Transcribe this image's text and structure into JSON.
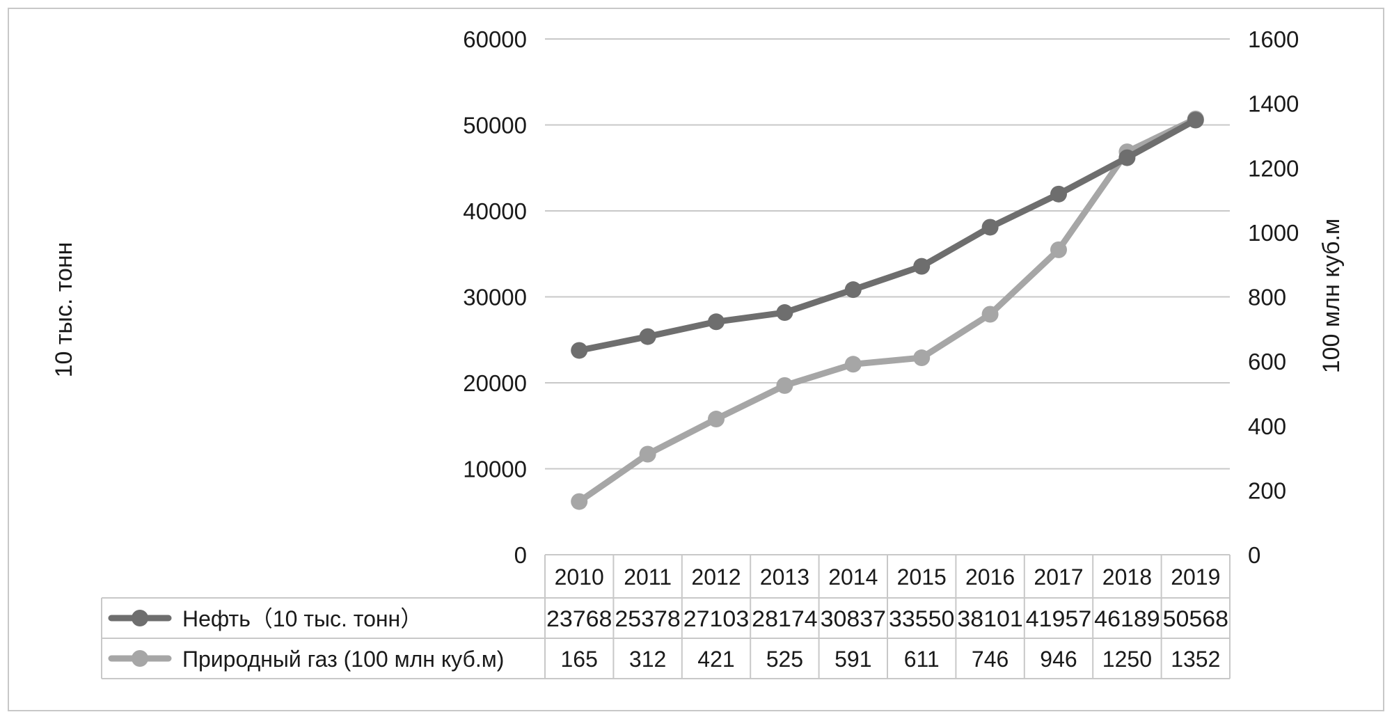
{
  "chart_data": {
    "type": "line",
    "categories": [
      "2010",
      "2011",
      "2012",
      "2013",
      "2014",
      "2015",
      "2016",
      "2017",
      "2018",
      "2019"
    ],
    "series": [
      {
        "name": "Нефть（10 тыс. тонн）",
        "axis": "left",
        "color": "#6e6e6e",
        "values": [
          23768,
          25378,
          27103,
          28174,
          30837,
          33550,
          38101,
          41957,
          46189,
          50568
        ],
        "table_values": [
          "23768",
          "25378",
          "27103",
          "28174",
          "30837",
          "33550",
          "38101",
          "41957",
          "46189",
          "50568"
        ]
      },
      {
        "name": "Природный газ (100 млн куб.м)",
        "axis": "right",
        "color": "#a6a6a6",
        "values": [
          165,
          312,
          421,
          525,
          591,
          611,
          746,
          946,
          1250,
          1352
        ],
        "table_values": [
          "165",
          "312",
          "421",
          "525",
          "591",
          "611",
          "746",
          "946",
          "1250",
          "1352"
        ]
      }
    ],
    "ylabel": "10 тыс. тонн",
    "y2label": "100 млн куб.м",
    "ylim": [
      0,
      60000
    ],
    "y2lim": [
      0,
      1600
    ],
    "yticks": [
      "0",
      "10000",
      "20000",
      "30000",
      "40000",
      "50000",
      "60000"
    ],
    "y2ticks": [
      "0",
      "200",
      "400",
      "600",
      "800",
      "1000",
      "1200",
      "1400",
      "1600"
    ],
    "grid": true,
    "legend": "data table below chart",
    "gridColor": "#c8c8c8",
    "textColor": "#1a1a1a"
  }
}
